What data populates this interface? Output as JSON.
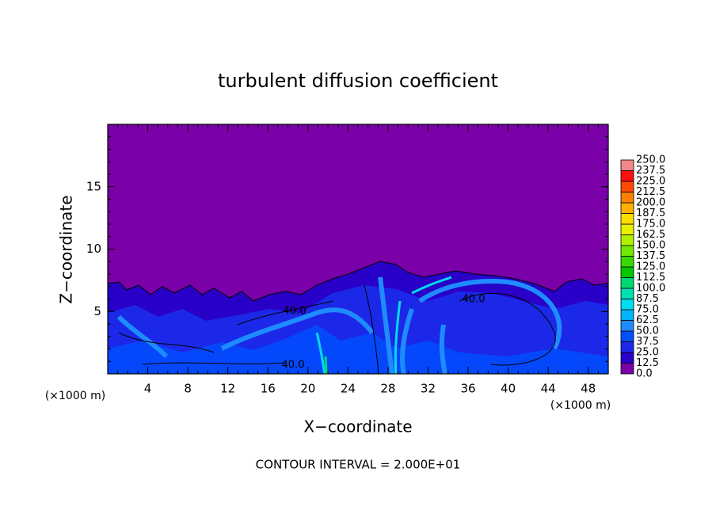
{
  "chart_data": {
    "type": "contour",
    "title": "turbulent diffusion coefficient",
    "xlabel": "X−coordinate",
    "ylabel": "Z−coordinate",
    "x_unit_label": "(×1000 m)",
    "x_unit_label_right": "(×1000 m)",
    "footer": "CONTOUR INTERVAL = 2.000E+01",
    "xlim": [
      0,
      50
    ],
    "ylim": [
      0,
      20
    ],
    "xticks": [
      4,
      8,
      12,
      16,
      20,
      24,
      28,
      32,
      36,
      40,
      44,
      48
    ],
    "yticks": [
      5,
      10,
      15
    ],
    "contour_labels": [
      {
        "value": 40,
        "label": "40.0"
      },
      {
        "value": 40,
        "label": "40.0"
      },
      {
        "value": 40,
        "label": "40.0"
      }
    ],
    "colorbar": {
      "levels": [
        {
          "value": 0,
          "label": "0.0"
        },
        {
          "value": 12.5,
          "label": "12.5"
        },
        {
          "value": 25,
          "label": "25.0"
        },
        {
          "value": 37.5,
          "label": "37.5"
        },
        {
          "value": 50,
          "label": "50.0"
        },
        {
          "value": 62.5,
          "label": "62.5"
        },
        {
          "value": 75,
          "label": "75.0"
        },
        {
          "value": 87.5,
          "label": "87.5"
        },
        {
          "value": 100,
          "label": "100.0"
        },
        {
          "value": 112.5,
          "label": "112.5"
        },
        {
          "value": 125,
          "label": "125.0"
        },
        {
          "value": 137.5,
          "label": "137.5"
        },
        {
          "value": 150,
          "label": "150.0"
        },
        {
          "value": 162.5,
          "label": "162.5"
        },
        {
          "value": 175,
          "label": "175.0"
        },
        {
          "value": 187.5,
          "label": "187.5"
        },
        {
          "value": 200,
          "label": "200.0"
        },
        {
          "value": 212.5,
          "label": "212.5"
        },
        {
          "value": 225,
          "label": "225.0"
        },
        {
          "value": 237.5,
          "label": "237.5"
        },
        {
          "value": 250,
          "label": "250.0"
        }
      ],
      "colors": [
        "#7a00a8",
        "#2800c8",
        "#1c28e8",
        "#0050ff",
        "#1e8cff",
        "#00b4ff",
        "#00dcf0",
        "#00e0b0",
        "#00d870",
        "#00c800",
        "#38d800",
        "#70e800",
        "#b0f000",
        "#e8f000",
        "#ffdc00",
        "#ffb000",
        "#ff8000",
        "#ff4800",
        "#ff1010",
        "#f08888"
      ]
    }
  }
}
